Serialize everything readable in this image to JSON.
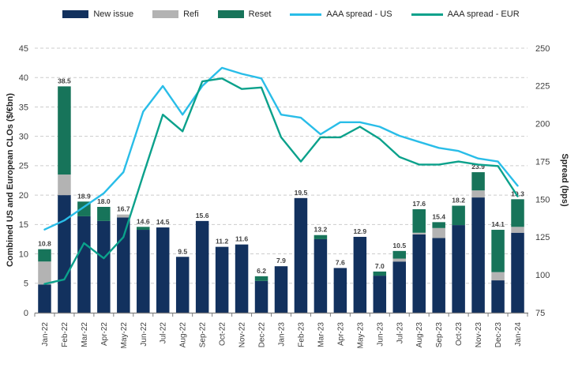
{
  "chart_data": {
    "type": "combo_stacked_bar_line",
    "title": "",
    "legend_position": "top",
    "grid": "horizontal dashed",
    "categories": [
      "Jan-22",
      "Feb-22",
      "Mar-22",
      "Apr-22",
      "May-22",
      "Jun-22",
      "Jul-22",
      "Aug-22",
      "Sep-22",
      "Oct-22",
      "Nov-22",
      "Dec-22",
      "Jan-23",
      "Feb-23",
      "Mar-23",
      "Apr-23",
      "May-23",
      "Jun-23",
      "Jul-23",
      "Aug-23",
      "Sep-23",
      "Oct-23",
      "Nov-23",
      "Dec-23",
      "Jan-24"
    ],
    "bar_total_labels": [
      "10.8",
      "38.5",
      "18.9",
      "18.0",
      "16.7",
      "14.6",
      "14.5",
      "9.5",
      "15.6",
      "11.2",
      "11.6",
      "6.2",
      "7.9",
      "19.5",
      "13.2",
      "7.6",
      "12.9",
      "7.0",
      "10.5",
      "17.6",
      "15.4",
      "18.2",
      "23.9",
      "14.1",
      "19.3"
    ],
    "bar_series": [
      {
        "name": "New issue",
        "color": "#12315e",
        "values": [
          4.8,
          20.0,
          16.4,
          15.6,
          16.2,
          14.1,
          14.5,
          9.5,
          15.6,
          11.2,
          11.6,
          5.4,
          7.9,
          19.5,
          12.5,
          7.6,
          12.9,
          6.3,
          8.7,
          13.3,
          12.7,
          14.9,
          19.6,
          5.5,
          13.6
        ]
      },
      {
        "name": "Refi",
        "color": "#b3b3b3",
        "values": [
          3.9,
          3.5,
          0,
          0,
          0.5,
          0,
          0,
          0,
          0,
          0,
          0,
          0,
          0,
          0,
          0,
          0,
          0,
          0,
          0.5,
          0.3,
          1.7,
          0,
          1.2,
          1.4,
          1.0
        ]
      },
      {
        "name": "Reset",
        "color": "#17745a",
        "values": [
          2.1,
          15.0,
          2.5,
          2.4,
          0,
          0.5,
          0,
          0,
          0,
          0,
          0,
          0.8,
          0,
          0,
          0.7,
          0,
          0,
          0.7,
          1.3,
          4.0,
          1.0,
          3.3,
          3.1,
          7.2,
          4.7
        ]
      }
    ],
    "line_series": [
      {
        "name": "AAA spread - US",
        "color": "#29bde8",
        "axis": "right",
        "values": [
          130,
          136,
          145,
          154,
          168,
          208,
          225,
          206,
          225,
          237,
          233,
          230,
          206,
          204,
          193,
          201,
          201,
          198,
          192,
          188,
          184,
          182,
          177,
          175,
          159
        ]
      },
      {
        "name": "AAA spread - EUR",
        "color": "#0ba18b",
        "axis": "right",
        "values": [
          94,
          97,
          121,
          111,
          125,
          166,
          206,
          195,
          228,
          230,
          223,
          224,
          191,
          175,
          191,
          191,
          198,
          190,
          178,
          173,
          173,
          175,
          173,
          172,
          152
        ]
      }
    ],
    "left_axis": {
      "title": "Combined US and European CLOs ($/€bn)",
      "min": 0,
      "max": 45,
      "ticks": [
        0,
        5,
        10,
        15,
        20,
        25,
        30,
        35,
        40,
        45
      ]
    },
    "right_axis": {
      "title": "Spread (bps)",
      "min": 75,
      "max": 250,
      "ticks": [
        75,
        100,
        125,
        150,
        175,
        200,
        225,
        250
      ]
    },
    "colors": {
      "grid": "#cccccc",
      "axis": "#7f7f7f",
      "tick_text": "#404040",
      "bar_label_text": "#404040"
    }
  }
}
